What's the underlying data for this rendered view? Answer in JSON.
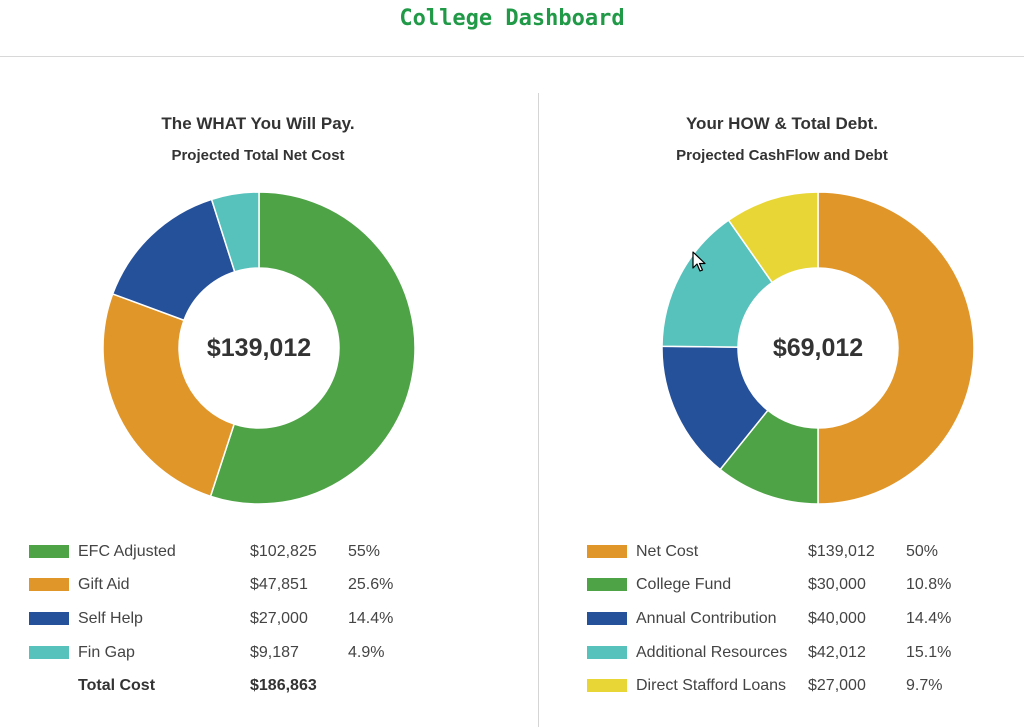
{
  "header": {
    "title": "College Dashboard"
  },
  "left_panel": {
    "title": "The WHAT You Will Pay.",
    "subtitle": "Projected Total Net Cost",
    "center_total": "$139,012",
    "legend": [
      {
        "label": "EFC Adjusted",
        "amount": "$102,825",
        "percent": "55%",
        "color": "#4ea346"
      },
      {
        "label": "Gift Aid",
        "amount": "$47,851",
        "percent": "25.6%",
        "color": "#e09628"
      },
      {
        "label": "Self Help",
        "amount": "$27,000",
        "percent": "14.4%",
        "color": "#25509a"
      },
      {
        "label": "Fin Gap",
        "amount": "$9,187",
        "percent": "4.9%",
        "color": "#57c1bc"
      }
    ],
    "total": {
      "label": "Total Cost",
      "amount": "$186,863"
    }
  },
  "right_panel": {
    "title": "Your HOW & Total Debt.",
    "subtitle": "Projected CashFlow and Debt",
    "center_total": "$69,012",
    "legend": [
      {
        "label": "Net Cost",
        "amount": "$139,012",
        "percent": "50%",
        "color": "#e09628"
      },
      {
        "label": "College Fund",
        "amount": "$30,000",
        "percent": "10.8%",
        "color": "#4ea346"
      },
      {
        "label": "Annual Contribution",
        "amount": "$40,000",
        "percent": "14.4%",
        "color": "#25509a"
      },
      {
        "label": "Additional Resources",
        "amount": "$42,012",
        "percent": "15.1%",
        "color": "#57c1bc"
      },
      {
        "label": "Direct Stafford Loans",
        "amount": "$27,000",
        "percent": "9.7%",
        "color": "#e8d637"
      }
    ]
  },
  "chart_data": [
    {
      "type": "pie",
      "title": "The WHAT You Will Pay.",
      "subtitle": "Projected Total Net Cost",
      "center_label": "$139,012",
      "categories": [
        "EFC Adjusted",
        "Gift Aid",
        "Self Help",
        "Fin Gap"
      ],
      "values": [
        102825,
        47851,
        27000,
        9187
      ],
      "percents": [
        55,
        25.6,
        14.4,
        4.9
      ],
      "colors": [
        "#4ea346",
        "#e09628",
        "#25509a",
        "#57c1bc"
      ],
      "total": 186863,
      "legend_position": "bottom"
    },
    {
      "type": "pie",
      "title": "Your HOW & Total Debt.",
      "subtitle": "Projected CashFlow and Debt",
      "center_label": "$69,012",
      "categories": [
        "Net Cost",
        "College Fund",
        "Annual Contribution",
        "Additional Resources",
        "Direct Stafford Loans"
      ],
      "values": [
        139012,
        30000,
        40000,
        42012,
        27000
      ],
      "percents": [
        50,
        10.8,
        14.4,
        15.1,
        9.7
      ],
      "colors": [
        "#e09628",
        "#4ea346",
        "#25509a",
        "#57c1bc",
        "#e8d637"
      ],
      "legend_position": "bottom"
    }
  ]
}
